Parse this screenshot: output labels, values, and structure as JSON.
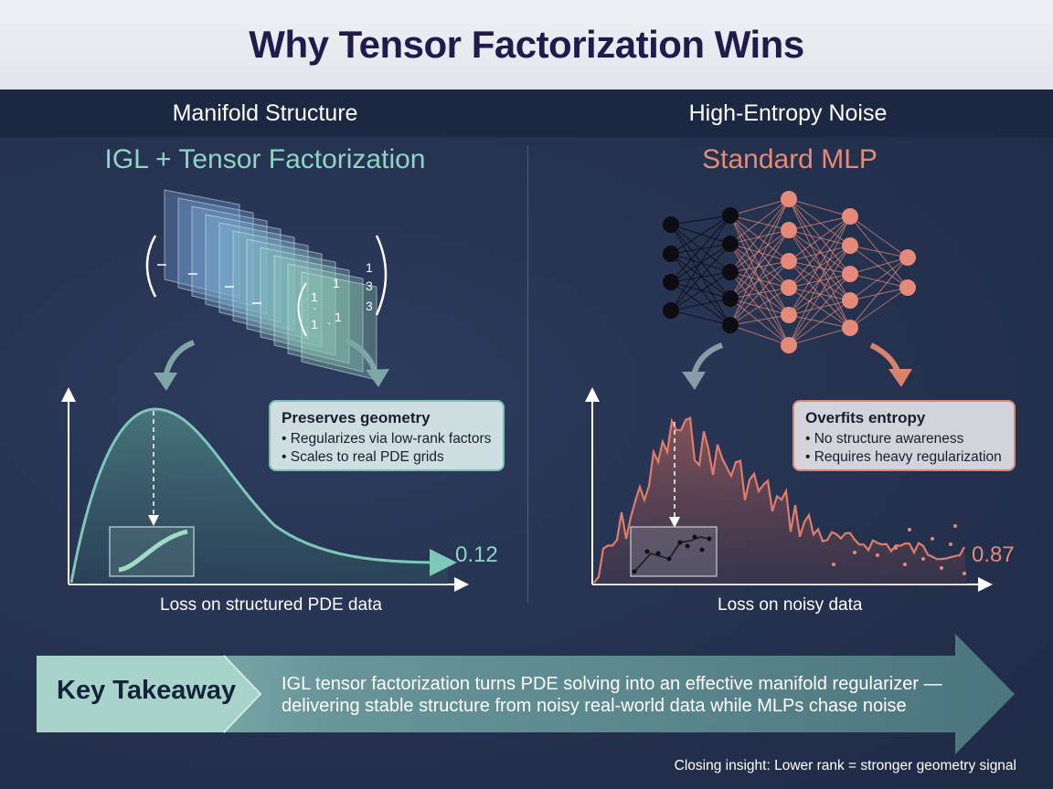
{
  "title": "Why Tensor Factorization Wins",
  "left": {
    "section": "Manifold Structure",
    "model": "IGL + Tensor Factorization",
    "callout_head": "Preserves geometry",
    "callout_bullets": [
      "• Regularizes via low-rank factors",
      "• Scales to real PDE grids"
    ],
    "value": "0.12",
    "axis_label": "Loss on structured PDE data",
    "matrix_entries": [
      "1",
      "1",
      "·",
      "·",
      "1",
      "1",
      "1",
      "3",
      "3"
    ]
  },
  "right": {
    "section": "High-Entropy Noise",
    "model": "Standard MLP",
    "callout_head": "Overfits entropy",
    "callout_bullets": [
      "• No structure awareness",
      "• Requires heavy regularization"
    ],
    "value": "0.87",
    "axis_label": "Loss on noisy data"
  },
  "takeaway": {
    "label": "Key Takeaway",
    "text": "IGL tensor factorization turns PDE solving into an effective manifold regularizer — delivering stable structure from noisy real-world data while MLPs chase noise"
  },
  "closing": "Closing insight: Lower rank = stronger geometry signal",
  "colors": {
    "title": "#1f1b4d",
    "left_accent": "#8fd4c5",
    "right_accent": "#e68a76",
    "left_curve": "#7fc8b8",
    "right_curve": "#e07d6a",
    "background": "#23304f"
  }
}
